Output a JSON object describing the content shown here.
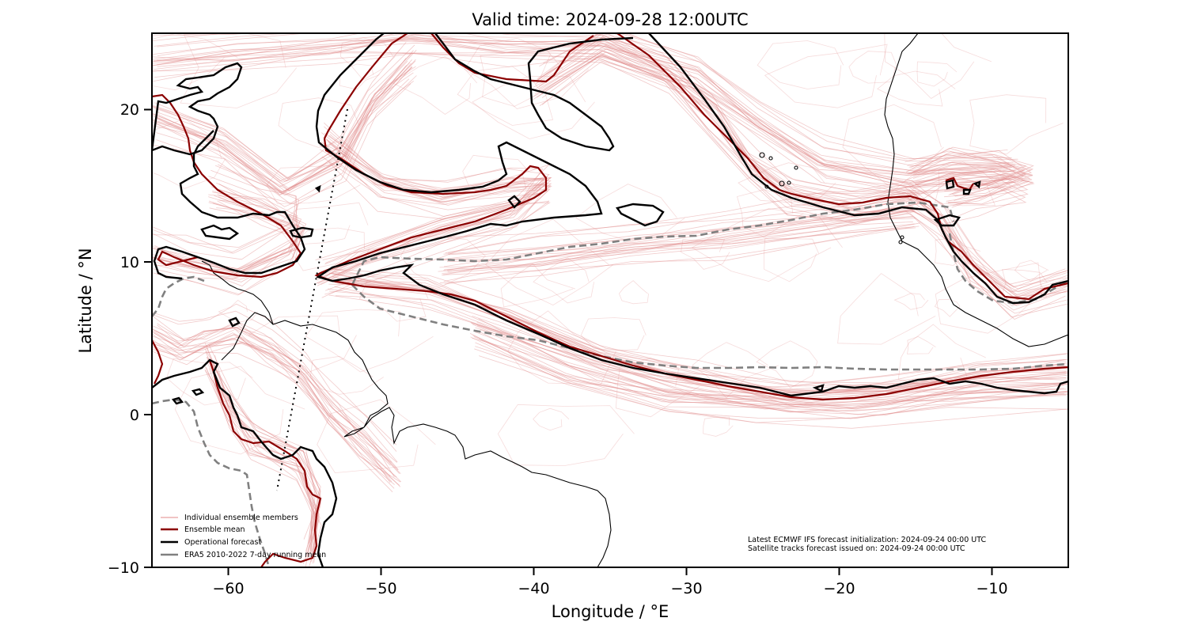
{
  "chart_data": {
    "type": "line",
    "subtype": "geographic contour map",
    "title": "Valid time: 2024-09-28 12:00UTC",
    "xlabel": "Longitude / °E",
    "ylabel": "Latitude / °N",
    "xlim": [
      -65,
      -5
    ],
    "ylim": [
      -10,
      25
    ],
    "xticks": [
      -60,
      -50,
      -40,
      -30,
      -20,
      -10
    ],
    "xtick_labels": [
      "−60",
      "−50",
      "−40",
      "−30",
      "−20",
      "−10"
    ],
    "yticks": [
      -10,
      0,
      10,
      20
    ],
    "ytick_labels": [
      "−10",
      "0",
      "10",
      "20"
    ],
    "grid": false,
    "legend_position": "lower left",
    "series": [
      {
        "name": "Individual ensemble members",
        "color": "#e8a0a0",
        "style": "thin solid, translucent",
        "description": "many thin contour lines spread across tropical Atlantic"
      },
      {
        "name": "Ensemble mean",
        "color": "#8b0000",
        "style": "solid",
        "description": "contour enclosing tropical Atlantic moist band, ~2-15°N across basin"
      },
      {
        "name": "Operational forecast",
        "color": "#000000",
        "style": "solid thick",
        "description": "contour similar to ensemble mean, more jagged"
      },
      {
        "name": "ERA5 2010-2022 7-day running mean",
        "color": "#808080",
        "style": "dashed",
        "description": "climatological contour ~3-14°N"
      }
    ],
    "satellite_track": {
      "style": "dotted black",
      "from": [
        -52.2,
        20
      ],
      "to": [
        -57,
        -5
      ]
    },
    "annotations": [
      "Latest ECMWF IFS forecast initialization: 2024-09-24 00:00 UTC",
      "Satellite tracks forecast issued on: 2024-09-24 00:00 UTC"
    ]
  },
  "figure": {
    "title": "Valid time: 2024-09-28 12:00UTC",
    "xlabel": "Longitude / °E",
    "ylabel": "Latitude / °N",
    "xticks": [
      "−60",
      "−50",
      "−40",
      "−30",
      "−20",
      "−10"
    ],
    "yticks": [
      "20",
      "10",
      "0",
      "−10"
    ],
    "legend": [
      "Individual ensemble members",
      "Ensemble mean",
      "Operational forecast",
      "ERA5 2010-2022 7-day running mean"
    ],
    "notes": [
      "Latest ECMWF IFS forecast initialization: 2024-09-24 00:00 UTC",
      "Satellite tracks forecast issued on: 2024-09-24 00:00 UTC"
    ],
    "colors": {
      "ensemble_member": "#e08a8a",
      "ensemble_mean": "#8b0000",
      "operational": "#000000",
      "era5": "#808080",
      "coastline": "#000000"
    }
  }
}
